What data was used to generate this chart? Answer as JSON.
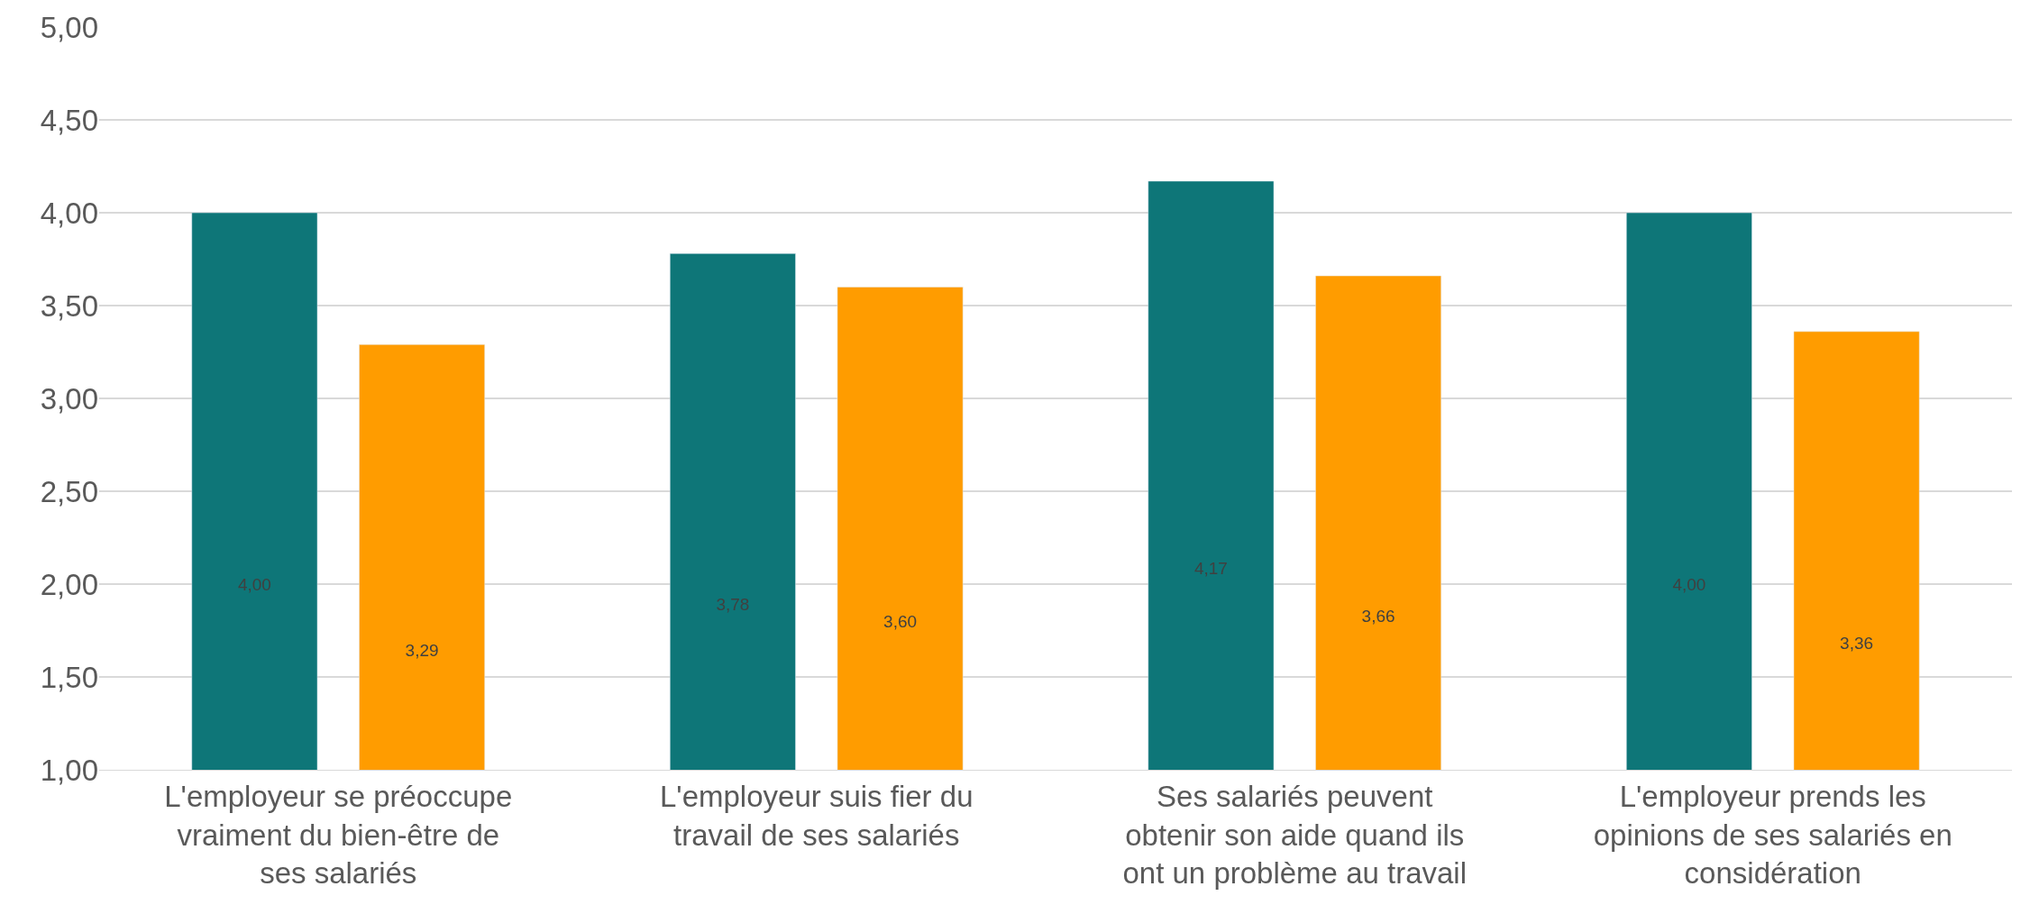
{
  "chart_data": {
    "type": "bar",
    "categories": [
      "L'employeur se préoccupe vraiment du bien-être de ses salariés",
      "L'employeur suis fier du travail de ses salariés",
      "Ses salariés peuvent obtenir son aide quand ils ont un problème au travail",
      "L'employeur prends les opinions de ses salariés en considération"
    ],
    "series": [
      {
        "color": "#0e7678",
        "values": [
          4.0,
          3.78,
          4.17,
          4.0
        ],
        "value_labels": [
          "4,00",
          "3,78",
          "4,17",
          "4,00"
        ]
      },
      {
        "color": "#ff9c00",
        "values": [
          3.29,
          3.6,
          3.66,
          3.36
        ],
        "value_labels": [
          "3,29",
          "3,60",
          "3,66",
          "3,36"
        ]
      }
    ],
    "ylim": [
      1,
      5
    ],
    "yticks": [
      {
        "value": 1,
        "label": "1,00"
      },
      {
        "value": 1.5,
        "label": "1,50"
      },
      {
        "value": 2,
        "label": "2,00"
      },
      {
        "value": 2.5,
        "label": "2,50"
      },
      {
        "value": 3,
        "label": "3,00"
      },
      {
        "value": 3.5,
        "label": "3,50"
      },
      {
        "value": 4,
        "label": "4,00"
      },
      {
        "value": 4.5,
        "label": "4,50"
      },
      {
        "value": 5,
        "label": "5,00"
      }
    ],
    "grid": "y"
  }
}
